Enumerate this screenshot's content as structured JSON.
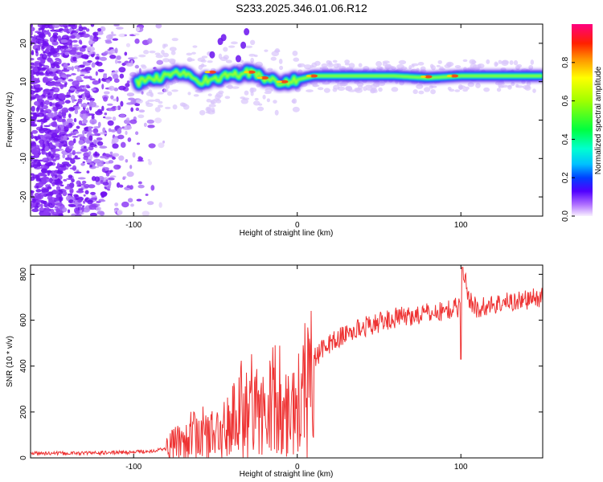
{
  "title": "S233.2025.346.01.06.R12",
  "chart_data": [
    {
      "type": "heatmap",
      "name": "spectrogram",
      "xlabel": "Height of straight line (km)",
      "ylabel": "Frequency (Hz)",
      "xlim": [
        -163,
        150
      ],
      "ylim": [
        -25,
        25
      ],
      "xticks": [
        -100,
        0,
        100
      ],
      "yticks": [
        -20,
        -10,
        0,
        10,
        20
      ],
      "grid": false,
      "ridge": {
        "x": [
          -100,
          -90,
          -80,
          -70,
          -60,
          -50,
          -40,
          -30,
          -20,
          -10,
          0,
          10,
          20,
          40,
          60,
          80,
          100,
          120,
          150
        ],
        "freq": [
          9.5,
          10.5,
          11.5,
          12.5,
          10.0,
          11.0,
          11.5,
          12.5,
          11.0,
          9.5,
          10.5,
          11.5,
          11.5,
          11.5,
          11.5,
          11.0,
          11.5,
          11.5,
          11.5
        ]
      },
      "colorbar": {
        "label": "Normalized spectral amplitude",
        "range": [
          0.0,
          1.0
        ],
        "ticks": [
          0.0,
          0.2,
          0.4,
          0.6,
          0.8
        ]
      }
    },
    {
      "type": "line",
      "name": "snr",
      "xlabel": "Height of straight line (km)",
      "ylabel": "SNR (10 * v/v)",
      "xlim": [
        -163,
        150
      ],
      "ylim": [
        0,
        840
      ],
      "xticks": [
        -100,
        0,
        100
      ],
      "yticks": [
        0,
        200,
        400,
        600,
        800
      ],
      "color": "#ee3333",
      "series": [
        {
          "name": "SNR",
          "x": [
            -163,
            -140,
            -120,
            -100,
            -90,
            -80,
            -75,
            -70,
            -60,
            -50,
            -45,
            -40,
            -35,
            -30,
            -25,
            -20,
            -15,
            -10,
            -5,
            0,
            5,
            10,
            15,
            20,
            30,
            40,
            50,
            60,
            70,
            80,
            90,
            95,
            100,
            101,
            105,
            110,
            120,
            130,
            140,
            150
          ],
          "y": [
            20,
            20,
            22,
            25,
            30,
            40,
            60,
            80,
            110,
            100,
            120,
            160,
            230,
            210,
            260,
            180,
            250,
            270,
            200,
            230,
            340,
            430,
            470,
            500,
            540,
            570,
            590,
            610,
            620,
            630,
            640,
            650,
            660,
            830,
            690,
            650,
            670,
            680,
            690,
            700
          ]
        }
      ]
    }
  ],
  "colors": {
    "line": "#ee3333",
    "axes": "#000000"
  }
}
